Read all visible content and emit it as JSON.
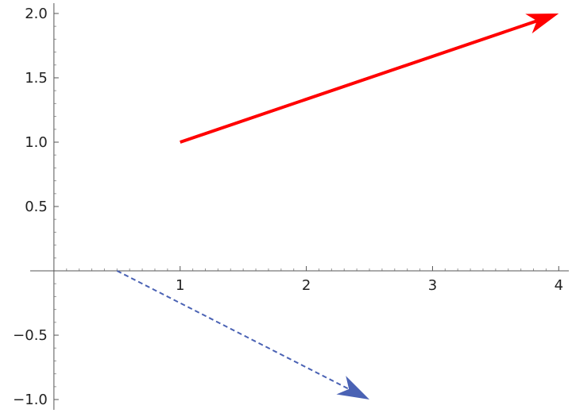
{
  "chart_data": {
    "type": "vector-plot",
    "title": "",
    "xlabel": "",
    "ylabel": "",
    "xlim": [
      -0.1,
      4.08
    ],
    "ylim": [
      -1.08,
      2.08
    ],
    "grid": false,
    "x_ticks": [
      {
        "value": 1,
        "label": "1"
      },
      {
        "value": 2,
        "label": "2"
      },
      {
        "value": 3,
        "label": "3"
      },
      {
        "value": 4,
        "label": "4"
      }
    ],
    "y_ticks": [
      {
        "value": -1.0,
        "label": "−1.0"
      },
      {
        "value": -0.5,
        "label": "−0.5"
      },
      {
        "value": 0.5,
        "label": "0.5"
      },
      {
        "value": 1.0,
        "label": "1.0"
      },
      {
        "value": 1.5,
        "label": "1.5"
      },
      {
        "value": 2.0,
        "label": "2.0"
      }
    ],
    "series": [
      {
        "from": [
          1,
          1
        ],
        "to": [
          4,
          2
        ],
        "color": "#ff0000",
        "style": "solid"
      },
      {
        "from": [
          0.5,
          0
        ],
        "to": [
          2.5,
          -1
        ],
        "color": "#4a62b4",
        "style": "dashed"
      }
    ]
  }
}
